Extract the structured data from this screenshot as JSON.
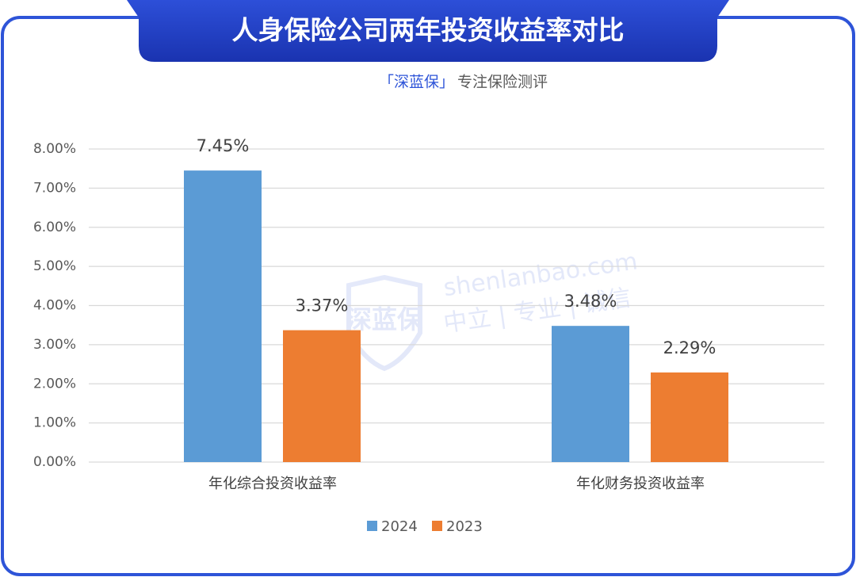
{
  "chart_data": {
    "type": "bar",
    "title": "人身保险公司两年投资收益率对比",
    "subtitle_brand": "「深蓝保」",
    "subtitle_text": "专注保险测评",
    "watermark": {
      "logo": "深蓝保",
      "site": "shenlanbao.com",
      "motto": "中立 | 专业 | 诚信"
    },
    "categories": [
      "年化综合投资收益率",
      "年化财务投资收益率"
    ],
    "series": [
      {
        "name": "2024",
        "color": "#5b9bd5",
        "values": [
          7.45,
          3.48
        ],
        "value_labels": [
          "7.45%",
          "3.48%"
        ]
      },
      {
        "name": "2023",
        "color": "#ed7d31",
        "values": [
          3.37,
          2.29
        ],
        "value_labels": [
          "3.37%",
          "2.29%"
        ]
      }
    ],
    "ylim": [
      0,
      8
    ],
    "yticks": [
      {
        "value": 0,
        "label": "0.00%"
      },
      {
        "value": 1,
        "label": "1.00%"
      },
      {
        "value": 2,
        "label": "2.00%"
      },
      {
        "value": 3,
        "label": "3.00%"
      },
      {
        "value": 4,
        "label": "4.00%"
      },
      {
        "value": 5,
        "label": "5.00%"
      },
      {
        "value": 6,
        "label": "6.00%"
      },
      {
        "value": 7,
        "label": "7.00%"
      },
      {
        "value": 8,
        "label": "8.00%"
      }
    ],
    "grid": true,
    "legend": "bottom"
  }
}
